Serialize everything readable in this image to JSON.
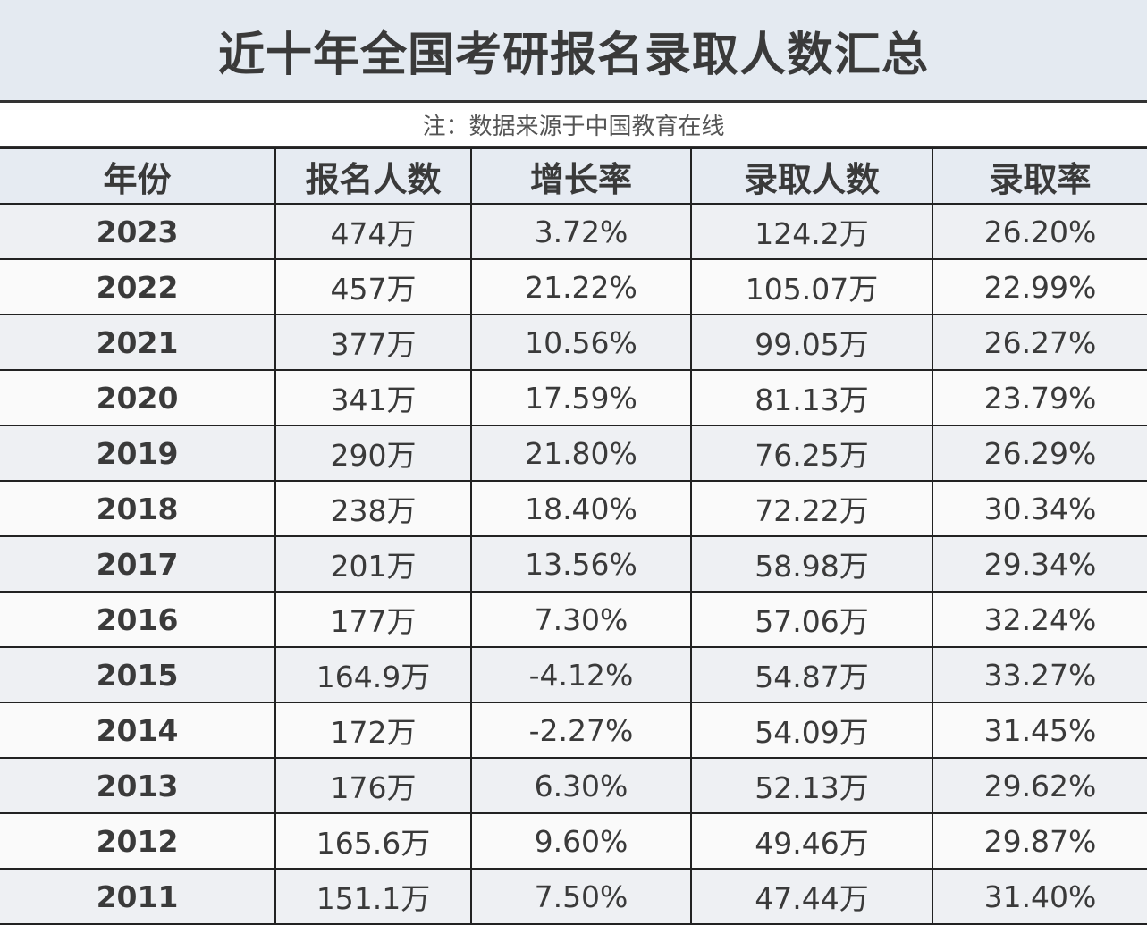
{
  "title": "近十年全国考研报名录取人数汇总",
  "note": "注：数据来源于中国教育在线",
  "table": {
    "headers": [
      "年份",
      "报名人数",
      "增长率",
      "录取人数",
      "录取率"
    ],
    "rows": [
      [
        "2023",
        "474万",
        "3.72%",
        "124.2万",
        "26.20%"
      ],
      [
        "2022",
        "457万",
        "21.22%",
        "105.07万",
        "22.99%"
      ],
      [
        "2021",
        "377万",
        "10.56%",
        "99.05万",
        "26.27%"
      ],
      [
        "2020",
        "341万",
        "17.59%",
        "81.13万",
        "23.79%"
      ],
      [
        "2019",
        "290万",
        "21.80%",
        "76.25万",
        "26.29%"
      ],
      [
        "2018",
        "238万",
        "18.40%",
        "72.22万",
        "30.34%"
      ],
      [
        "2017",
        "201万",
        "13.56%",
        "58.98万",
        "29.34%"
      ],
      [
        "2016",
        "177万",
        "7.30%",
        "57.06万",
        "32.24%"
      ],
      [
        "2015",
        "164.9万",
        "-4.12%",
        "54.87万",
        "33.27%"
      ],
      [
        "2014",
        "172万",
        "-2.27%",
        "54.09万",
        "31.45%"
      ],
      [
        "2013",
        "176万",
        "6.30%",
        "52.13万",
        "29.62%"
      ],
      [
        "2012",
        "165.6万",
        "9.60%",
        "49.46万",
        "29.87%"
      ],
      [
        "2011",
        "151.1万",
        "7.50%",
        "47.44万",
        "31.40%"
      ]
    ]
  }
}
